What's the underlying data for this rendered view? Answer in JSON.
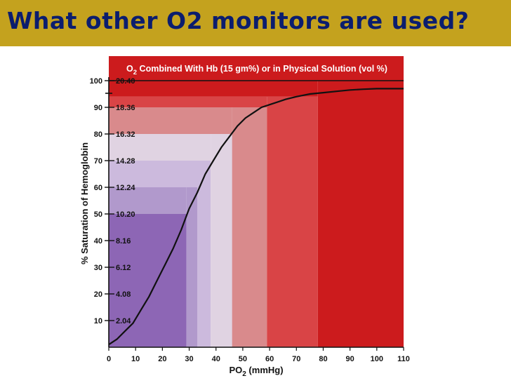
{
  "slide": {
    "title": "What other O2 monitors are used?",
    "title_bar_color": "#c4a21e",
    "title_color": "#0b1d6e"
  },
  "chart_data": {
    "type": "line",
    "title_main": "O",
    "title_sub": "2",
    "title_rest": " Combined With Hb (15 gm%) or in Physical Solution (vol %)",
    "xlabel_main": "PO",
    "xlabel_sub": "2",
    "xlabel_rest": " (mmHg)",
    "ylabel": "% Saturation of Hemoglobin",
    "xlim": [
      0,
      110
    ],
    "ylim": [
      0,
      100
    ],
    "x_ticks": [
      0,
      10,
      20,
      30,
      40,
      50,
      60,
      70,
      80,
      90,
      100,
      110
    ],
    "y_ticks": [
      10,
      20,
      30,
      40,
      50,
      60,
      70,
      80,
      90,
      100
    ],
    "y_inner_labels": [
      "2.04",
      "4.08",
      "6.12",
      "8.16",
      "10.20",
      "12.24",
      "14.28",
      "16.32",
      "18.36",
      "20.40"
    ],
    "curve_color": "#111111",
    "series": [
      {
        "x": [
          0,
          3,
          6,
          9,
          12,
          15,
          18,
          21,
          24,
          27,
          30,
          33,
          36,
          39,
          42,
          45,
          48,
          51,
          54,
          57,
          60,
          63,
          66,
          70,
          75,
          80,
          85,
          90,
          95,
          100,
          105,
          110
        ],
        "y": [
          1,
          3,
          6,
          9,
          14,
          19,
          25,
          31,
          37,
          44,
          52,
          58,
          65,
          70,
          75,
          79,
          83,
          86,
          88,
          90,
          91,
          92,
          93,
          94,
          95,
          95.5,
          96,
          96.5,
          96.8,
          97,
          97,
          97
        ]
      }
    ],
    "bands": [
      {
        "x0": 0,
        "x1": 29,
        "y0": 0,
        "y1": 50,
        "color": "#8d66b5"
      },
      {
        "x0": 29,
        "x1": 33,
        "y0": 0,
        "y1": 60,
        "color": "#b199cc"
      },
      {
        "x0": 33,
        "x1": 38,
        "y0": 0,
        "y1": 70,
        "color": "#ccbadd"
      },
      {
        "x0": 38,
        "x1": 46,
        "y0": 0,
        "y1": 80,
        "color": "#e0d3e2"
      },
      {
        "x0": 46,
        "x1": 59,
        "y0": 0,
        "y1": 90,
        "color": "#d98a8c"
      },
      {
        "x0": 59,
        "x1": 78,
        "y0": 0,
        "y1": 94,
        "color": "#d94446"
      },
      {
        "x0": 78,
        "x1": 110,
        "y0": 0,
        "y1": 100,
        "color": "#cc1b1d"
      },
      {
        "x0": 0,
        "x1": 29,
        "y0": 50,
        "y1": 60,
        "color": "#b199cc"
      },
      {
        "x0": 0,
        "x1": 33,
        "y0": 60,
        "y1": 70,
        "color": "#ccbadd"
      },
      {
        "x0": 0,
        "x1": 38,
        "y0": 70,
        "y1": 80,
        "color": "#e0d3e2"
      },
      {
        "x0": 0,
        "x1": 46,
        "y0": 80,
        "y1": 90,
        "color": "#d98a8c"
      },
      {
        "x0": 0,
        "x1": 59,
        "y0": 90,
        "y1": 94,
        "color": "#d94446"
      },
      {
        "x0": 0,
        "x1": 78,
        "y0": 94,
        "y1": 100,
        "color": "#cc1b1d"
      }
    ],
    "top_band_color": "#cc1b1d"
  }
}
